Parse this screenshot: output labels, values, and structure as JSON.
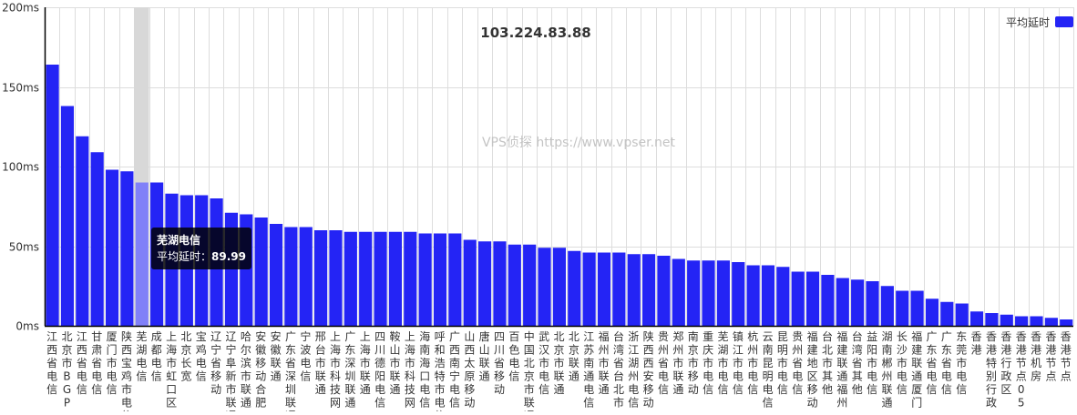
{
  "chart_data": {
    "type": "bar",
    "title": "103.224.83.88",
    "watermark": "VPS侦探 https://www.vpser.net",
    "legend": {
      "label": "平均延时",
      "position": "top-right",
      "color": "#2424f5"
    },
    "ylim": [
      0,
      200
    ],
    "yticks": [
      "0ms",
      "50ms",
      "100ms",
      "150ms",
      "200ms"
    ],
    "ytick_values": [
      0,
      50,
      100,
      150,
      200
    ],
    "grid": true,
    "bar_color": "#2424f5",
    "highlight_color": "#8080f8",
    "categories": [
      "江西省电信",
      "北京市BGP",
      "江西省电信",
      "甘肃省电信",
      "厦门市电信",
      "陕西宝鸡市电信",
      "芜湖电信",
      "成都电信",
      "上海市虹口区",
      "北京长宽",
      "宝鸡电信",
      "辽宁省移动",
      "辽宁阜新市联通",
      "哈尔滨市联通",
      "安徽移动合肥",
      "安徽联通",
      "广东省深圳联通",
      "宁波电信",
      "邢台市联通",
      "上海市科技网",
      "广东深圳联通",
      "上海市联通",
      "四川德阳电信",
      "鞍山市联通",
      "上海市科技网",
      "海南海口电信",
      "呼和浩特市电信",
      "广西南宁电信",
      "山西太原移动",
      "唐山联通",
      "四川省移动",
      "百色电信",
      "中国北京市联通",
      "武汉市电信",
      "北京市联通",
      "北京联通",
      "江苏南通电信",
      "福州市联通",
      "台湾省台北市",
      "浙江湖州电信",
      "陕西西安移动",
      "贵州省电信",
      "郑州市联通",
      "南京市移动",
      "重庆市电信",
      "芜湖市电信",
      "镇江市电信",
      "杭州市电信",
      "云南昆明电信",
      "昆明市电信",
      "贵州省电信",
      "福建地区移动",
      "台北市其他",
      "福建联通福州",
      "台湾省其他",
      "益阳市电信",
      "湖南郴州联通",
      "长沙市电信",
      "福建联通厦门",
      "广东省电信",
      "广东省电信",
      "东莞市电信",
      "香港",
      "香港特别行政",
      "香港行政区",
      "香港节点05",
      "香港机房",
      "香港节点",
      "香港节点"
    ],
    "values": [
      164,
      138,
      119,
      109,
      98,
      97,
      89.99,
      90,
      83,
      82,
      82,
      80,
      71,
      70,
      68,
      64,
      62,
      62,
      60,
      60,
      59,
      59,
      59,
      59,
      59,
      58,
      58,
      58,
      54,
      53,
      53,
      51,
      51,
      49,
      49,
      47,
      46,
      46,
      46,
      45,
      45,
      44,
      42,
      41,
      41,
      41,
      40,
      38,
      38,
      37,
      34,
      34,
      32,
      30,
      29,
      28,
      25,
      22,
      22,
      17,
      15,
      14,
      9,
      8,
      7,
      6,
      6,
      5,
      4
    ],
    "highlight_index": 6,
    "tooltip": {
      "title": "芜湖电信",
      "label": "平均延时：",
      "value": "89.99"
    }
  }
}
